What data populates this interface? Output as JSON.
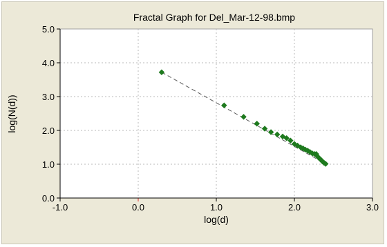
{
  "chart_data": {
    "type": "scatter",
    "title": "Fractal Graph for Del_Mar-12-98.bmp",
    "xlabel": "log(d)",
    "ylabel": "log(N(d))",
    "xlim": [
      -1.0,
      3.0
    ],
    "ylim": [
      0.0,
      5.0
    ],
    "x_ticks": [
      "-1.0",
      "0.0",
      "1.0",
      "2.0",
      "3.0"
    ],
    "y_ticks": [
      "0.0",
      "1.0",
      "2.0",
      "3.0",
      "4.0",
      "5.0"
    ],
    "grid": true,
    "points": [
      {
        "x": 0.3,
        "y": 3.72
      },
      {
        "x": 1.1,
        "y": 2.74
      },
      {
        "x": 1.35,
        "y": 2.4
      },
      {
        "x": 1.52,
        "y": 2.2
      },
      {
        "x": 1.62,
        "y": 2.05
      },
      {
        "x": 1.7,
        "y": 1.95
      },
      {
        "x": 1.78,
        "y": 1.88
      },
      {
        "x": 1.85,
        "y": 1.82
      },
      {
        "x": 1.9,
        "y": 1.77
      },
      {
        "x": 1.95,
        "y": 1.7
      },
      {
        "x": 2.0,
        "y": 1.6
      },
      {
        "x": 2.04,
        "y": 1.55
      },
      {
        "x": 2.08,
        "y": 1.5
      },
      {
        "x": 2.11,
        "y": 1.47
      },
      {
        "x": 2.14,
        "y": 1.43
      },
      {
        "x": 2.17,
        "y": 1.4
      },
      {
        "x": 2.2,
        "y": 1.36
      },
      {
        "x": 2.23,
        "y": 1.32
      },
      {
        "x": 2.26,
        "y": 1.3
      },
      {
        "x": 2.28,
        "y": 1.3
      },
      {
        "x": 2.3,
        "y": 1.22
      },
      {
        "x": 2.32,
        "y": 1.17
      },
      {
        "x": 2.34,
        "y": 1.13
      },
      {
        "x": 2.36,
        "y": 1.08
      },
      {
        "x": 2.38,
        "y": 1.04
      },
      {
        "x": 2.4,
        "y": 1.01
      }
    ],
    "trendline": {
      "x": [
        0.3,
        2.4
      ],
      "y": [
        3.72,
        1.01
      ],
      "style": "dashed"
    },
    "point_color": "#1e7a1e",
    "line_color": "#555555",
    "grid_color": "#b8b8b8",
    "zero_marker_color": "#e03030"
  }
}
